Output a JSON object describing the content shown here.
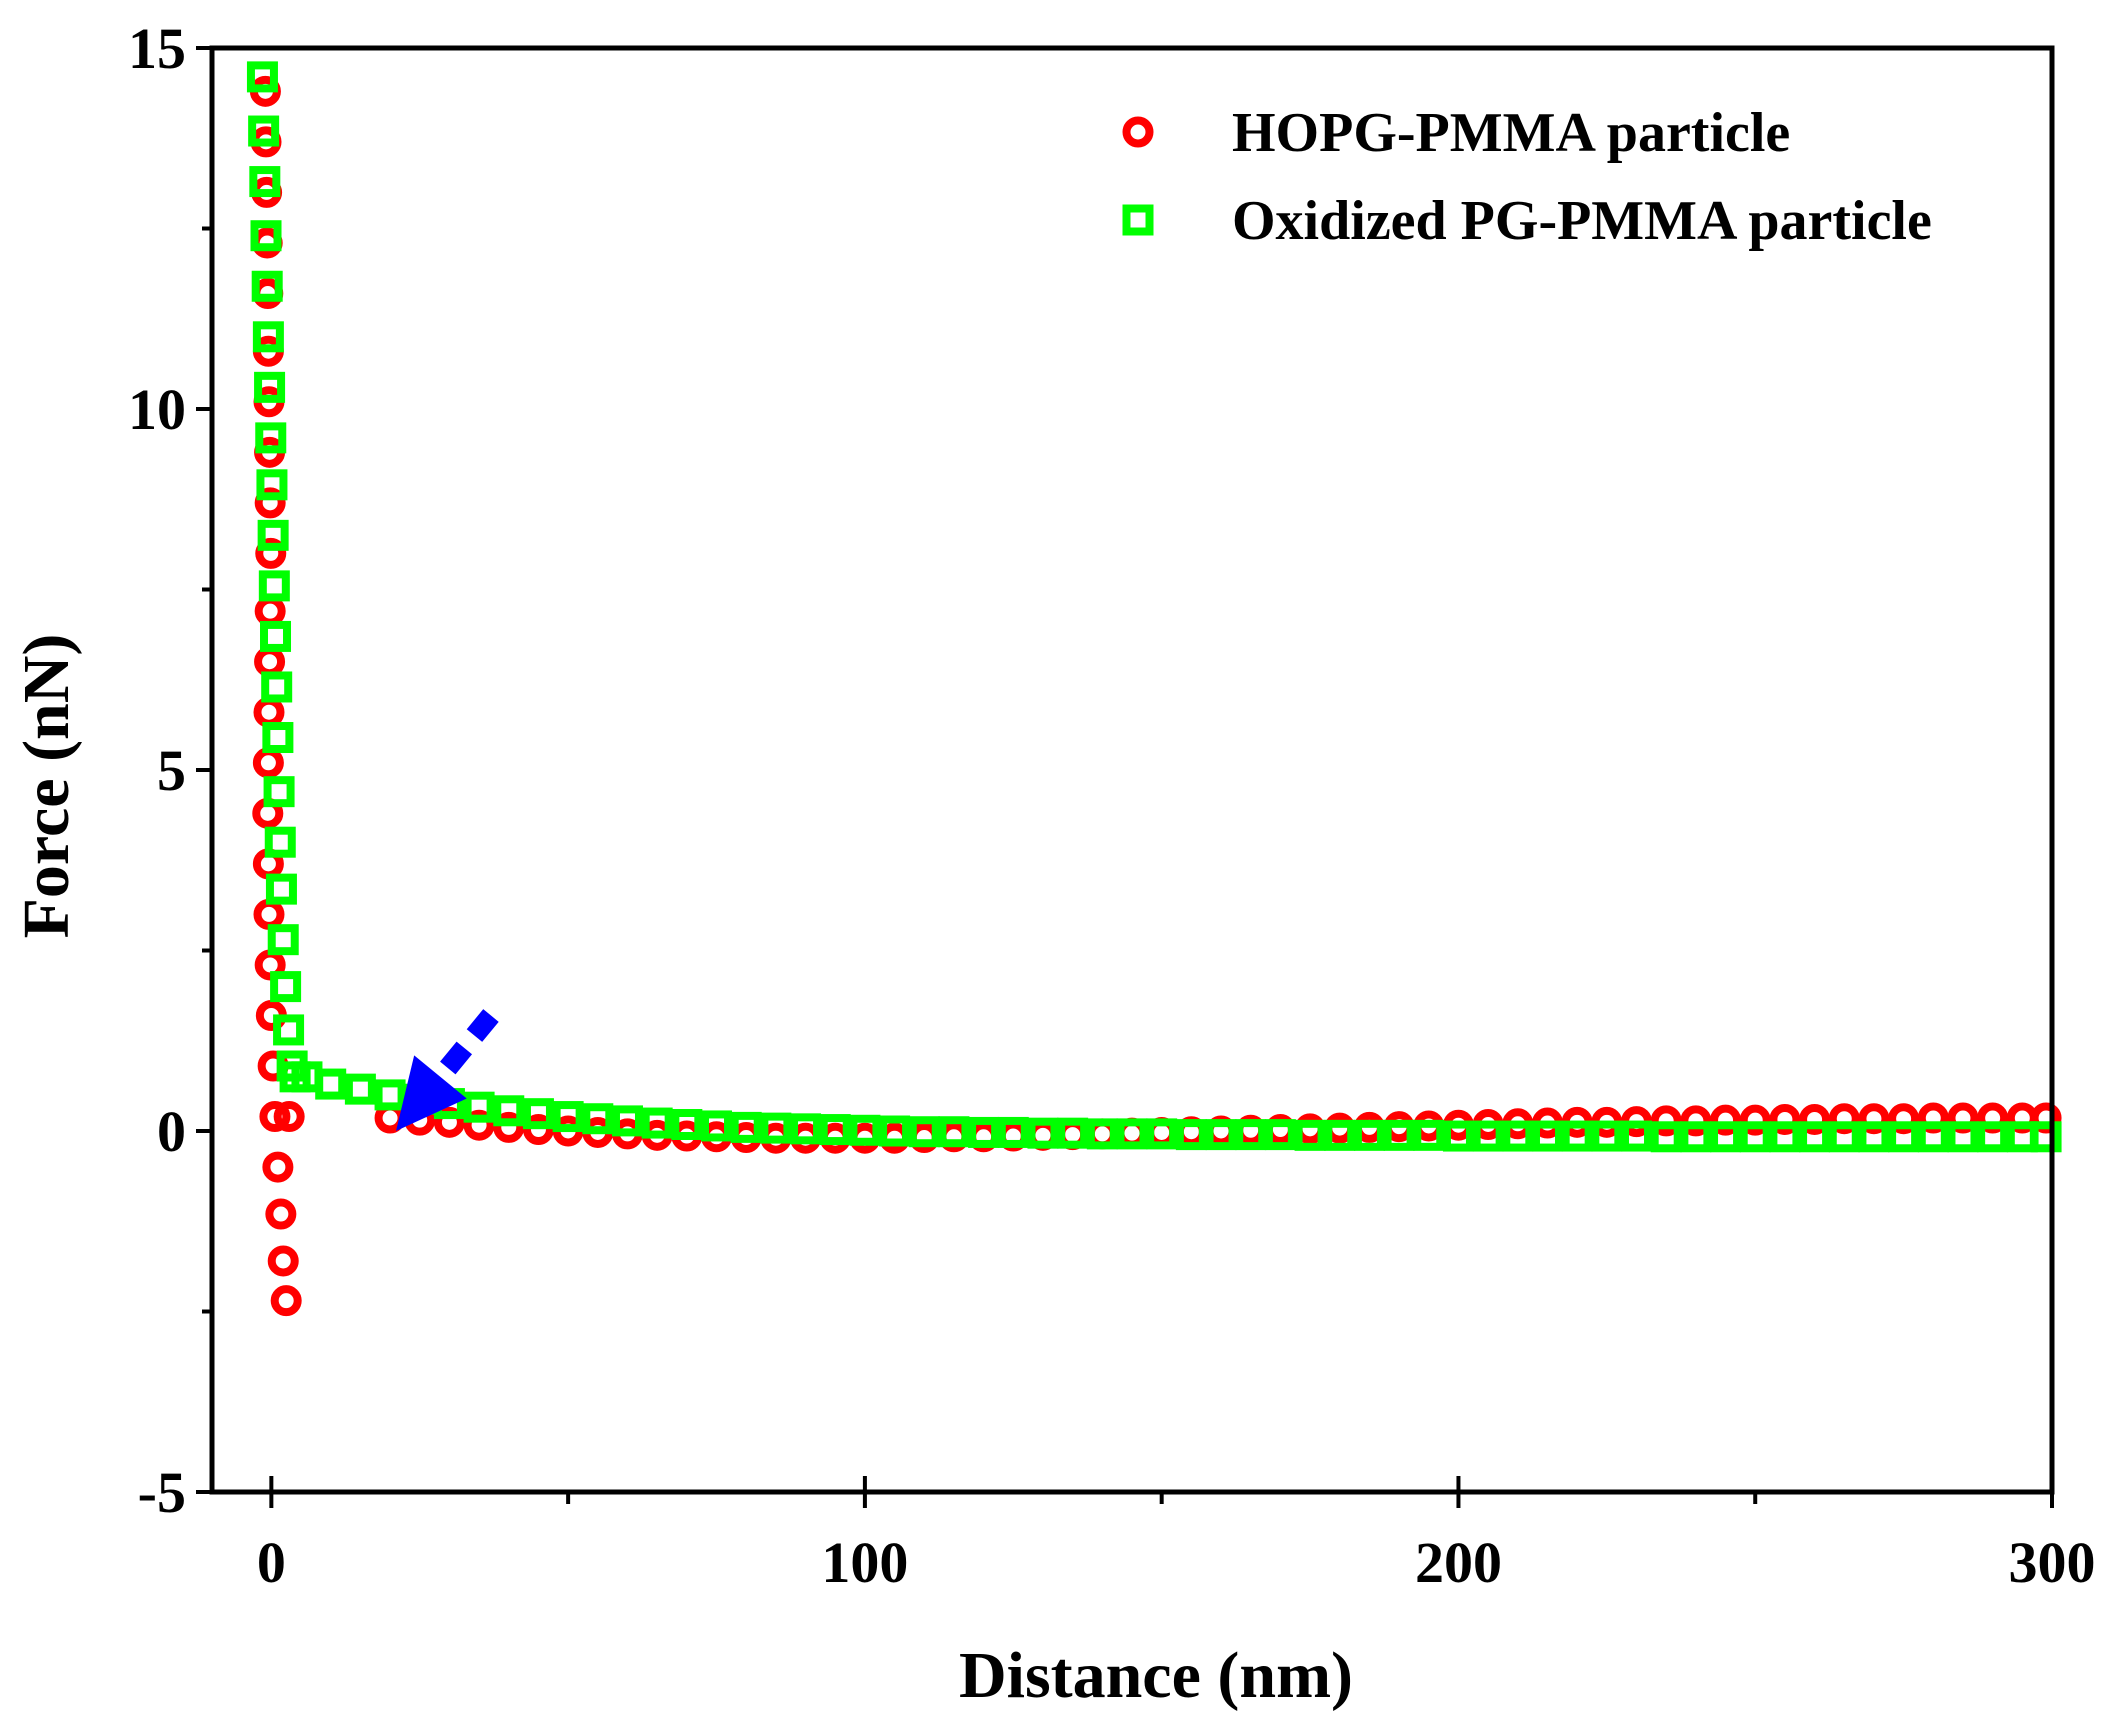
{
  "chart_data": {
    "type": "scatter",
    "title": "",
    "xlabel": "Distance (nm)",
    "ylabel": "Force (nN)",
    "xlim": [
      -10,
      300
    ],
    "ylim": [
      -5,
      15
    ],
    "xticks": [
      0,
      100,
      200,
      300
    ],
    "yticks": [
      -5,
      0,
      5,
      10,
      15
    ],
    "xtick_labels": [
      "0",
      "100",
      "200",
      "300"
    ],
    "ytick_labels": [
      "-5",
      "0",
      "5",
      "10",
      "15"
    ],
    "grid": false,
    "legend_position": "top-right",
    "series": [
      {
        "name": "HOPG-PMMA particle",
        "marker": "circle",
        "color": "#ff0000",
        "x": [
          -1.0,
          -0.9,
          -0.8,
          -0.7,
          -0.6,
          -0.5,
          -0.4,
          -0.3,
          -0.2,
          -0.1,
          -0.2,
          -0.3,
          -0.4,
          -0.5,
          -0.6,
          -0.5,
          -0.4,
          -0.2,
          0.0,
          0.3,
          0.6,
          1.1,
          1.6,
          2.0,
          2.5,
          3.0,
          20,
          25,
          30,
          35,
          40,
          45,
          50,
          55,
          60,
          65,
          70,
          75,
          80,
          85,
          90,
          95,
          100,
          105,
          110,
          115,
          120,
          125,
          130,
          135,
          140,
          145,
          150,
          155,
          160,
          165,
          170,
          175,
          180,
          185,
          190,
          195,
          200,
          205,
          210,
          215,
          220,
          225,
          230,
          235,
          240,
          245,
          250,
          255,
          260,
          265,
          270,
          275,
          280,
          285,
          290,
          295,
          299
        ],
        "y": [
          14.4,
          13.7,
          13.0,
          12.3,
          11.6,
          10.8,
          10.1,
          9.4,
          8.7,
          8.0,
          7.2,
          6.5,
          5.8,
          5.1,
          4.4,
          3.7,
          3.0,
          2.3,
          1.6,
          0.9,
          0.2,
          -0.5,
          -1.15,
          -1.8,
          -2.35,
          0.2,
          0.18,
          0.15,
          0.12,
          0.08,
          0.05,
          0.02,
          0.0,
          -0.02,
          -0.04,
          -0.06,
          -0.07,
          -0.08,
          -0.09,
          -0.1,
          -0.1,
          -0.1,
          -0.1,
          -0.1,
          -0.09,
          -0.08,
          -0.08,
          -0.07,
          -0.06,
          -0.05,
          -0.04,
          -0.03,
          -0.02,
          -0.01,
          0.0,
          0.01,
          0.02,
          0.03,
          0.04,
          0.05,
          0.06,
          0.07,
          0.08,
          0.09,
          0.1,
          0.11,
          0.12,
          0.12,
          0.13,
          0.14,
          0.14,
          0.15,
          0.15,
          0.16,
          0.16,
          0.17,
          0.17,
          0.17,
          0.18,
          0.18,
          0.18,
          0.18,
          0.18
        ]
      },
      {
        "name": "Oxidized PG-PMMA particle",
        "marker": "square",
        "color": "#00ff00",
        "x": [
          -1.5,
          -1.3,
          -1.1,
          -0.9,
          -0.7,
          -0.5,
          -0.3,
          -0.1,
          0.1,
          0.3,
          0.5,
          0.7,
          0.9,
          1.1,
          1.3,
          1.5,
          1.7,
          2.0,
          2.4,
          2.9,
          3.5,
          4.0,
          6.0,
          10,
          15,
          20,
          25,
          30,
          35,
          40,
          45,
          50,
          55,
          60,
          65,
          70,
          75,
          80,
          85,
          90,
          95,
          100,
          105,
          110,
          115,
          120,
          125,
          130,
          135,
          140,
          145,
          150,
          155,
          160,
          165,
          170,
          175,
          180,
          185,
          190,
          195,
          200,
          205,
          210,
          215,
          220,
          225,
          230,
          235,
          240,
          245,
          250,
          255,
          260,
          265,
          270,
          275,
          280,
          285,
          290,
          295,
          299
        ],
        "y": [
          14.6,
          13.85,
          13.15,
          12.4,
          11.7,
          11.0,
          10.3,
          9.6,
          8.95,
          8.25,
          7.55,
          6.85,
          6.15,
          5.45,
          4.7,
          4.0,
          3.35,
          2.65,
          2.0,
          1.4,
          0.9,
          0.75,
          0.75,
          0.65,
          0.58,
          0.5,
          0.44,
          0.38,
          0.33,
          0.28,
          0.24,
          0.2,
          0.17,
          0.14,
          0.11,
          0.09,
          0.07,
          0.05,
          0.04,
          0.03,
          0.02,
          0.01,
          0.0,
          -0.01,
          -0.01,
          -0.02,
          -0.02,
          -0.03,
          -0.03,
          -0.04,
          -0.04,
          -0.04,
          -0.05,
          -0.05,
          -0.05,
          -0.05,
          -0.06,
          -0.06,
          -0.06,
          -0.06,
          -0.06,
          -0.07,
          -0.07,
          -0.07,
          -0.07,
          -0.07,
          -0.07,
          -0.07,
          -0.08,
          -0.08,
          -0.08,
          -0.08,
          -0.08,
          -0.08,
          -0.08,
          -0.08,
          -0.08,
          -0.08,
          -0.08,
          -0.08,
          -0.08,
          -0.08
        ]
      }
    ],
    "annotations": [
      {
        "type": "arrow",
        "style": "dashed",
        "color": "#0000ff",
        "from": [
          37,
          1.6
        ],
        "to": [
          21,
          0.0
        ]
      }
    ]
  }
}
